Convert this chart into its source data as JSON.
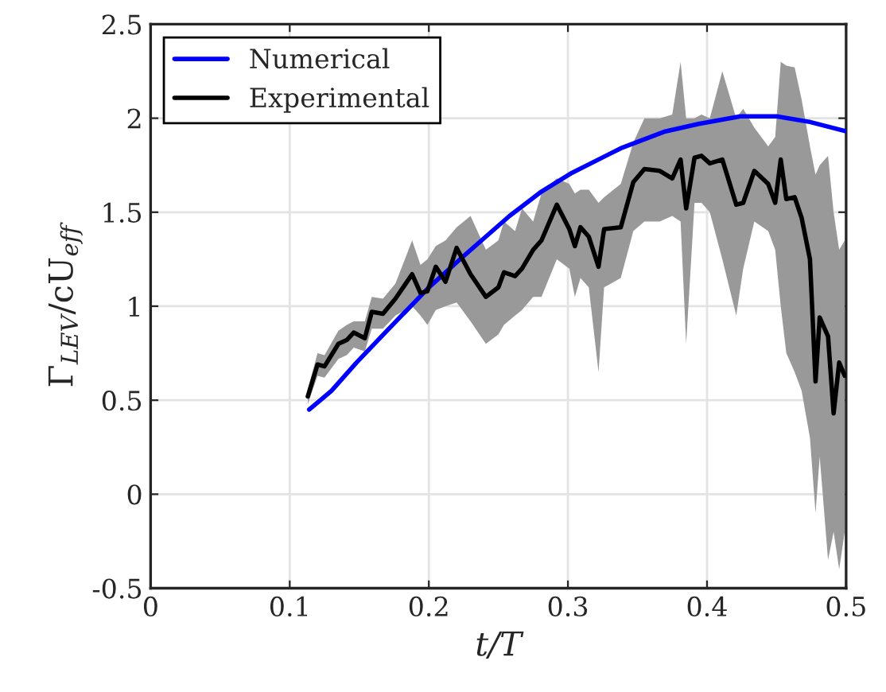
{
  "chart_data": {
    "type": "line",
    "xlabel": "t/T",
    "ylabel": "Γ$_{LEV}$/cU$_{eff}$",
    "xlim": [
      0,
      0.5
    ],
    "ylim": [
      -0.5,
      2.5
    ],
    "xticks": [
      0,
      0.1,
      0.2,
      0.3,
      0.4,
      0.5
    ],
    "yticks": [
      -0.5,
      0,
      0.5,
      1,
      1.5,
      2,
      2.5
    ],
    "grid": true,
    "legend": "top left",
    "line_style": "solid",
    "marker": "none",
    "series": [
      {
        "name": "Numerical",
        "color": "#0000ff",
        "x": [
          0.114,
          0.13,
          0.148,
          0.17,
          0.2,
          0.224,
          0.258,
          0.281,
          0.303,
          0.338,
          0.37,
          0.394,
          0.424,
          0.45,
          0.474,
          0.5
        ],
        "values": [
          0.45,
          0.55,
          0.7,
          0.87,
          1.1,
          1.26,
          1.48,
          1.61,
          1.71,
          1.84,
          1.93,
          1.97,
          2.01,
          2.01,
          1.98,
          1.93
        ]
      },
      {
        "name": "Experimental",
        "color": "#000000",
        "x": [
          0.113,
          0.12,
          0.125,
          0.135,
          0.141,
          0.146,
          0.154,
          0.159,
          0.167,
          0.176,
          0.188,
          0.194,
          0.199,
          0.205,
          0.212,
          0.22,
          0.23,
          0.241,
          0.25,
          0.254,
          0.262,
          0.267,
          0.275,
          0.281,
          0.292,
          0.301,
          0.305,
          0.309,
          0.315,
          0.322,
          0.326,
          0.338,
          0.347,
          0.355,
          0.366,
          0.375,
          0.381,
          0.385,
          0.391,
          0.396,
          0.402,
          0.411,
          0.421,
          0.426,
          0.434,
          0.444,
          0.449,
          0.453,
          0.457,
          0.463,
          0.468,
          0.474,
          0.478,
          0.481,
          0.487,
          0.491,
          0.495,
          0.499
        ],
        "values": [
          0.52,
          0.69,
          0.68,
          0.8,
          0.82,
          0.86,
          0.83,
          0.97,
          0.96,
          1.04,
          1.17,
          1.07,
          1.08,
          1.21,
          1.13,
          1.31,
          1.17,
          1.05,
          1.1,
          1.18,
          1.16,
          1.2,
          1.3,
          1.35,
          1.54,
          1.41,
          1.32,
          1.42,
          1.37,
          1.21,
          1.41,
          1.42,
          1.66,
          1.73,
          1.72,
          1.68,
          1.78,
          1.52,
          1.79,
          1.8,
          1.76,
          1.78,
          1.54,
          1.55,
          1.72,
          1.65,
          1.55,
          1.78,
          1.57,
          1.58,
          1.47,
          1.25,
          0.6,
          0.94,
          0.84,
          0.43,
          0.7,
          0.63
        ],
        "lower": [
          0.48,
          0.63,
          0.62,
          0.72,
          0.74,
          0.78,
          0.76,
          0.88,
          0.88,
          0.95,
          1.0,
          0.95,
          0.9,
          0.98,
          1.0,
          1.02,
          0.92,
          0.8,
          0.85,
          0.9,
          0.95,
          0.98,
          1.05,
          1.05,
          1.25,
          1.2,
          1.05,
          1.15,
          1.1,
          0.65,
          1.1,
          1.15,
          1.4,
          1.45,
          1.45,
          1.48,
          1.45,
          0.8,
          1.55,
          1.55,
          1.5,
          1.25,
          0.95,
          1.2,
          1.45,
          1.4,
          1.3,
          1.0,
          0.75,
          0.65,
          0.55,
          0.3,
          -0.1,
          0.2,
          -0.35,
          -0.2,
          -0.4,
          -0.2
        ],
        "upper": [
          0.56,
          0.75,
          0.74,
          0.87,
          0.9,
          0.92,
          0.92,
          1.05,
          1.04,
          1.12,
          1.35,
          1.22,
          1.25,
          1.32,
          1.35,
          1.42,
          1.48,
          1.3,
          1.35,
          1.45,
          1.4,
          1.52,
          1.45,
          1.6,
          1.68,
          1.65,
          1.6,
          1.62,
          1.62,
          1.55,
          1.58,
          1.65,
          1.87,
          2.0,
          2.0,
          2.02,
          2.3,
          2.0,
          2.0,
          2.02,
          2.0,
          2.25,
          2.0,
          2.05,
          1.95,
          1.85,
          1.9,
          2.3,
          2.28,
          2.27,
          2.1,
          1.85,
          1.7,
          1.75,
          1.8,
          1.5,
          1.3,
          1.35
        ]
      }
    ]
  }
}
